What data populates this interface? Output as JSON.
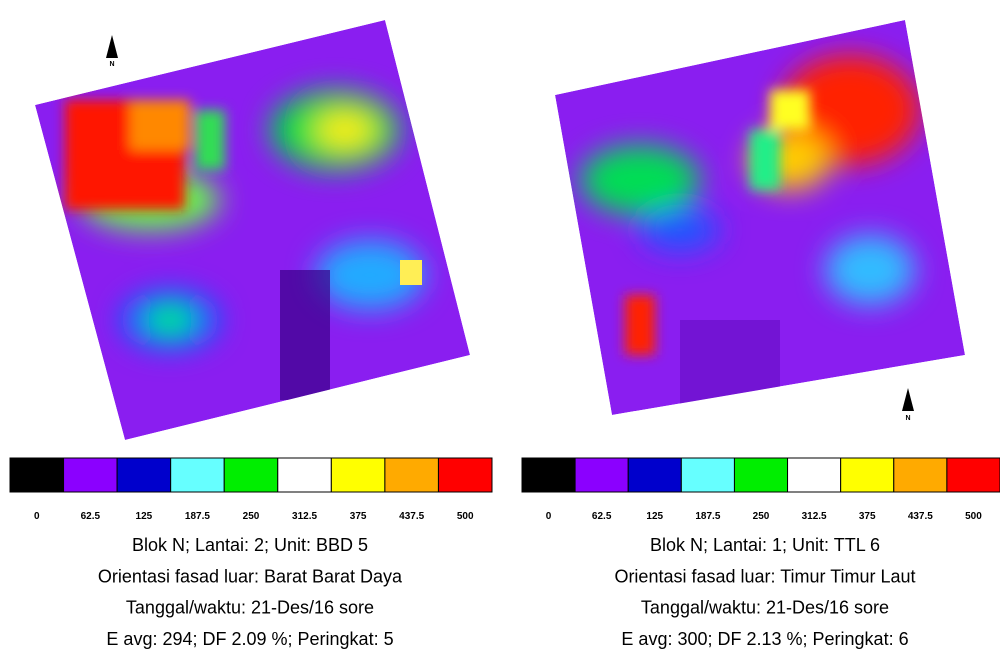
{
  "panels": [
    {
      "north_label": "N",
      "legend": {
        "colors": [
          "#000000",
          "#8b00ff",
          "#0000cc",
          "#66ffff",
          "#00ee00",
          "#ffffff",
          "#ffff00",
          "#ffaa00",
          "#ff0000"
        ],
        "labels": [
          0,
          62.5,
          125,
          187.5,
          250,
          312.5,
          375,
          437.5,
          500
        ]
      },
      "caption": [
        "Blok N; Lantai: 2; Unit: BBD 5",
        "Orientasi fasad luar: Barat Barat Daya",
        "Tanggal/waktu: 21-Des/16 sore",
        "E avg: 294; DF 2.09 %; Peringkat: 5"
      ]
    },
    {
      "north_label": "N",
      "legend": {
        "colors": [
          "#000000",
          "#8b00ff",
          "#0000cc",
          "#66ffff",
          "#00ee00",
          "#ffffff",
          "#ffff00",
          "#ffaa00",
          "#ff0000"
        ],
        "labels": [
          0,
          62.5,
          125,
          187.5,
          250,
          312.5,
          375,
          437.5,
          500
        ]
      },
      "caption": [
        "Blok N; Lantai: 1; Unit: TTL 6",
        "Orientasi fasad luar: Timur Timur Laut",
        "Tanggal/waktu: 21-Des/16 sore",
        "E avg: 300; DF 2.13 %; Peringkat: 6"
      ]
    }
  ]
}
